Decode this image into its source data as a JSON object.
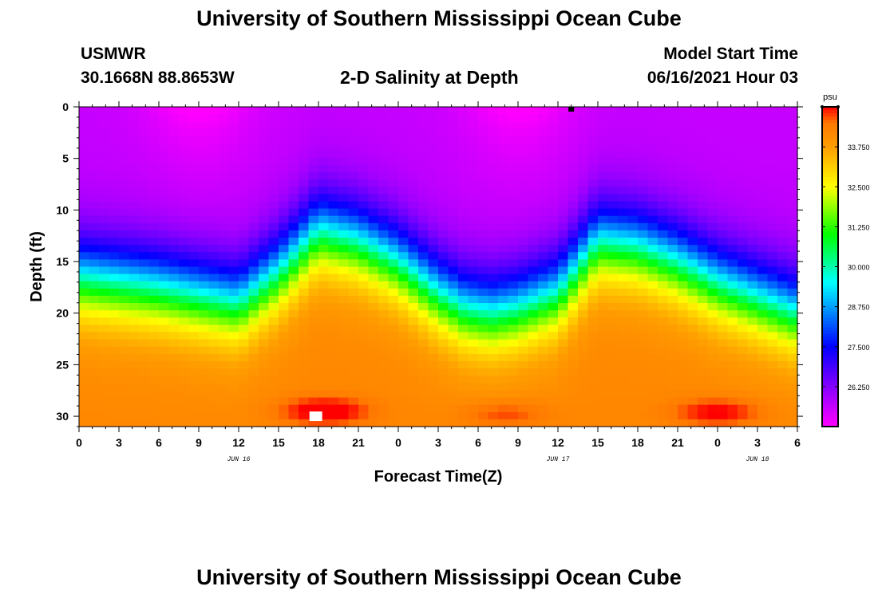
{
  "header": {
    "title": "University of Southern Mississippi Ocean Cube",
    "station": "USMWR",
    "coords": "30.1668N  88.8653W",
    "subtitle": "2-D Salinity at Depth",
    "model_start_label": "Model Start Time",
    "model_start_value": "06/16/2021 Hour 03"
  },
  "footer": {
    "title": "University of Southern Mississippi Ocean Cube"
  },
  "chart_data": {
    "type": "heatmap",
    "title": "2-D Salinity at Depth",
    "xlabel": "Forecast Time(Z)",
    "ylabel": "Depth (ft)",
    "ylim": [
      0,
      31
    ],
    "y_ticks": [
      0,
      5,
      10,
      15,
      20,
      25,
      30
    ],
    "x_range_hours": [
      0,
      54
    ],
    "x_tick_labels": [
      "0",
      "3",
      "6",
      "9",
      "12",
      "15",
      "18",
      "21",
      "0",
      "3",
      "6",
      "9",
      "12",
      "15",
      "18",
      "21",
      "0",
      "3",
      "6"
    ],
    "date_labels": [
      {
        "text": "JUN 16",
        "hour": 12
      },
      {
        "text": "JUN 17",
        "hour": 36
      },
      {
        "text": "JUN 18",
        "hour": 51
      }
    ],
    "colorbar": {
      "unit": "psu",
      "range": [
        25.0,
        35.0
      ],
      "tick_labels": [
        "33.750",
        "32.500",
        "31.250",
        "30.000",
        "28.750",
        "27.500",
        "26.250"
      ],
      "tick_values": [
        33.75,
        32.5,
        31.25,
        30.0,
        28.75,
        27.5,
        26.25
      ]
    },
    "halocline_depth_ft": {
      "hours": [
        0,
        6,
        10,
        12,
        15,
        18,
        21,
        24,
        27,
        29,
        31,
        33,
        36,
        39,
        42,
        45,
        48,
        51,
        54
      ],
      "values": [
        16.5,
        17.5,
        18.5,
        19,
        16,
        12,
        13,
        15,
        18,
        19.5,
        20,
        19.5,
        18,
        13,
        13.5,
        15,
        17,
        18.5,
        20
      ]
    },
    "surface_minimum_hours": [
      9,
      33
    ],
    "bottom_maximum": [
      {
        "hour": 18.5,
        "depth_ft": 29.5,
        "value": 35.2
      },
      {
        "hour": 32,
        "depth_ft": 29.8,
        "value": 34.7
      },
      {
        "hour": 48,
        "depth_ft": 29.6,
        "value": 35.0
      }
    ],
    "markers": [
      {
        "name": "surface-marker",
        "hour": 37,
        "depth_ft": 0.2
      },
      {
        "name": "bottom-marker",
        "hour": 17.8,
        "depth_ft": 30
      }
    ]
  }
}
